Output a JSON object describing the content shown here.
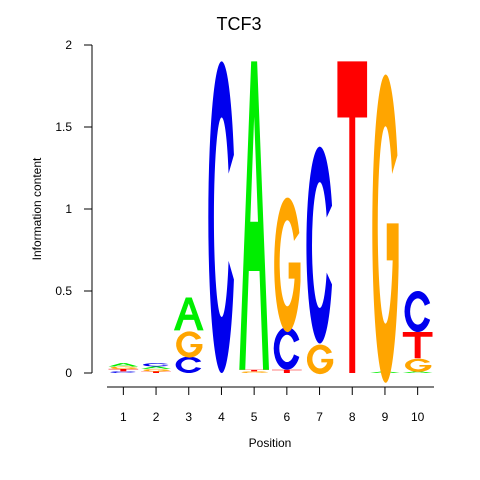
{
  "chart_data": {
    "type": "sequence-logo",
    "title": "TCF3",
    "xlabel": "Position",
    "ylabel": "Information content",
    "ylim": [
      0,
      2
    ],
    "yticks": [
      0,
      0.5,
      1,
      1.5,
      2
    ],
    "ytick_labels": [
      "0",
      "0.5",
      "1",
      "1.5",
      "2"
    ],
    "xtick_labels": [
      "1",
      "2",
      "3",
      "4",
      "5",
      "6",
      "7",
      "8",
      "9",
      "10"
    ],
    "colors": {
      "A": "#00ee00",
      "C": "#0000ee",
      "G": "#ffa500",
      "T": "#ff0000"
    },
    "positions": [
      {
        "position": 1,
        "letters": [
          {
            "base": "C",
            "height": 0.01
          },
          {
            "base": "T",
            "height": 0.015
          },
          {
            "base": "G",
            "height": 0.015
          },
          {
            "base": "A",
            "height": 0.02
          }
        ]
      },
      {
        "position": 2,
        "letters": [
          {
            "base": "T",
            "height": 0.01
          },
          {
            "base": "G",
            "height": 0.015
          },
          {
            "base": "A",
            "height": 0.015
          },
          {
            "base": "C",
            "height": 0.02
          }
        ]
      },
      {
        "position": 3,
        "letters": [
          {
            "base": "C",
            "height": 0.1
          },
          {
            "base": "G",
            "height": 0.16
          },
          {
            "base": "A",
            "height": 0.2
          }
        ]
      },
      {
        "position": 4,
        "letters": [
          {
            "base": "C",
            "height": 1.9
          }
        ]
      },
      {
        "position": 5,
        "letters": [
          {
            "base": "G",
            "height": 0.01
          },
          {
            "base": "T",
            "height": 0.01
          },
          {
            "base": "A",
            "height": 1.88
          }
        ]
      },
      {
        "position": 6,
        "letters": [
          {
            "base": "T",
            "height": 0.02
          },
          {
            "base": "C",
            "height": 0.26
          },
          {
            "base": "G",
            "height": 0.82
          }
        ]
      },
      {
        "position": 7,
        "letters": [
          {
            "base": "G",
            "height": 0.18
          },
          {
            "base": "C",
            "height": 1.2
          }
        ]
      },
      {
        "position": 8,
        "letters": [
          {
            "base": "T",
            "height": 1.9
          }
        ]
      },
      {
        "position": 9,
        "letters": [
          {
            "base": "A",
            "height": 0.01
          },
          {
            "base": "G",
            "height": 1.88
          }
        ]
      },
      {
        "position": 10,
        "letters": [
          {
            "base": "A",
            "height": 0.01
          },
          {
            "base": "G",
            "height": 0.08
          },
          {
            "base": "T",
            "height": 0.16
          },
          {
            "base": "C",
            "height": 0.25
          }
        ]
      }
    ]
  }
}
